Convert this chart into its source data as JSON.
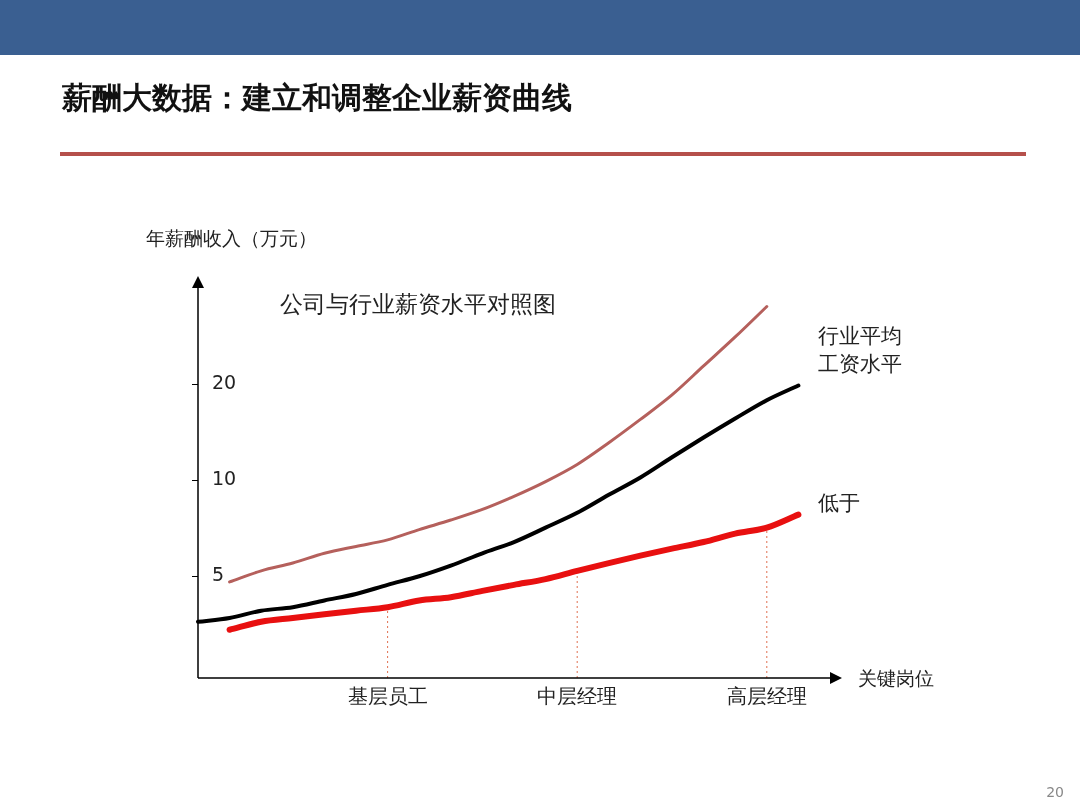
{
  "chart_data": {
    "type": "line",
    "title": "薪酬大数据：建立和调整企业薪资曲线",
    "subtitle": "公司与行业薪资水平对照图",
    "ylabel": "年薪酬收入（万元）",
    "xlabel": "关键岗位",
    "log": "y",
    "ylim": [
      2.4,
      40
    ],
    "yticks": [
      5,
      10,
      20
    ],
    "categories": [
      null,
      null,
      null,
      null,
      null,
      null,
      "基层员工",
      null,
      null,
      null,
      null,
      null,
      "中层经理",
      null,
      null,
      null,
      null,
      null,
      "高层经理",
      null,
      null
    ],
    "series": [
      {
        "color": "#b5605c",
        "values": [
          null,
          4.8,
          5.2,
          5.5,
          5.9,
          6.2,
          6.5,
          7.0,
          7.5,
          8.1,
          8.9,
          9.9,
          11.2,
          13.1,
          15.5,
          18.5,
          22.8,
          28.1,
          35.0,
          null,
          null
        ]
      },
      {
        "name": "行业平均工资水平",
        "color": "#000000",
        "values": [
          3.6,
          3.7,
          3.9,
          4.0,
          4.2,
          4.4,
          4.7,
          5.0,
          5.4,
          5.9,
          6.4,
          7.1,
          7.9,
          9.0,
          10.2,
          11.8,
          13.6,
          15.6,
          17.8,
          19.8,
          null
        ]
      },
      {
        "name": "低于",
        "color": "#e81010",
        "values": [
          null,
          3.4,
          3.6,
          3.7,
          3.8,
          3.9,
          4.0,
          4.2,
          4.3,
          4.5,
          4.7,
          4.9,
          5.2,
          5.5,
          5.8,
          6.1,
          6.4,
          6.8,
          7.1,
          7.8,
          null
        ]
      }
    ],
    "ref_lines": [
      {
        "axis": "x",
        "value": "基层员工",
        "color": "#e07050",
        "line_style": "dotted"
      },
      {
        "axis": "x",
        "value": "中层经理",
        "color": "#e07050",
        "line_style": "dotted"
      },
      {
        "axis": "x",
        "value": "高层经理",
        "color": "#e07050",
        "line_style": "dotted"
      }
    ],
    "grid": false,
    "legend": false,
    "marker": "none",
    "line_style": "solid",
    "annotations": [
      "20"
    ]
  }
}
